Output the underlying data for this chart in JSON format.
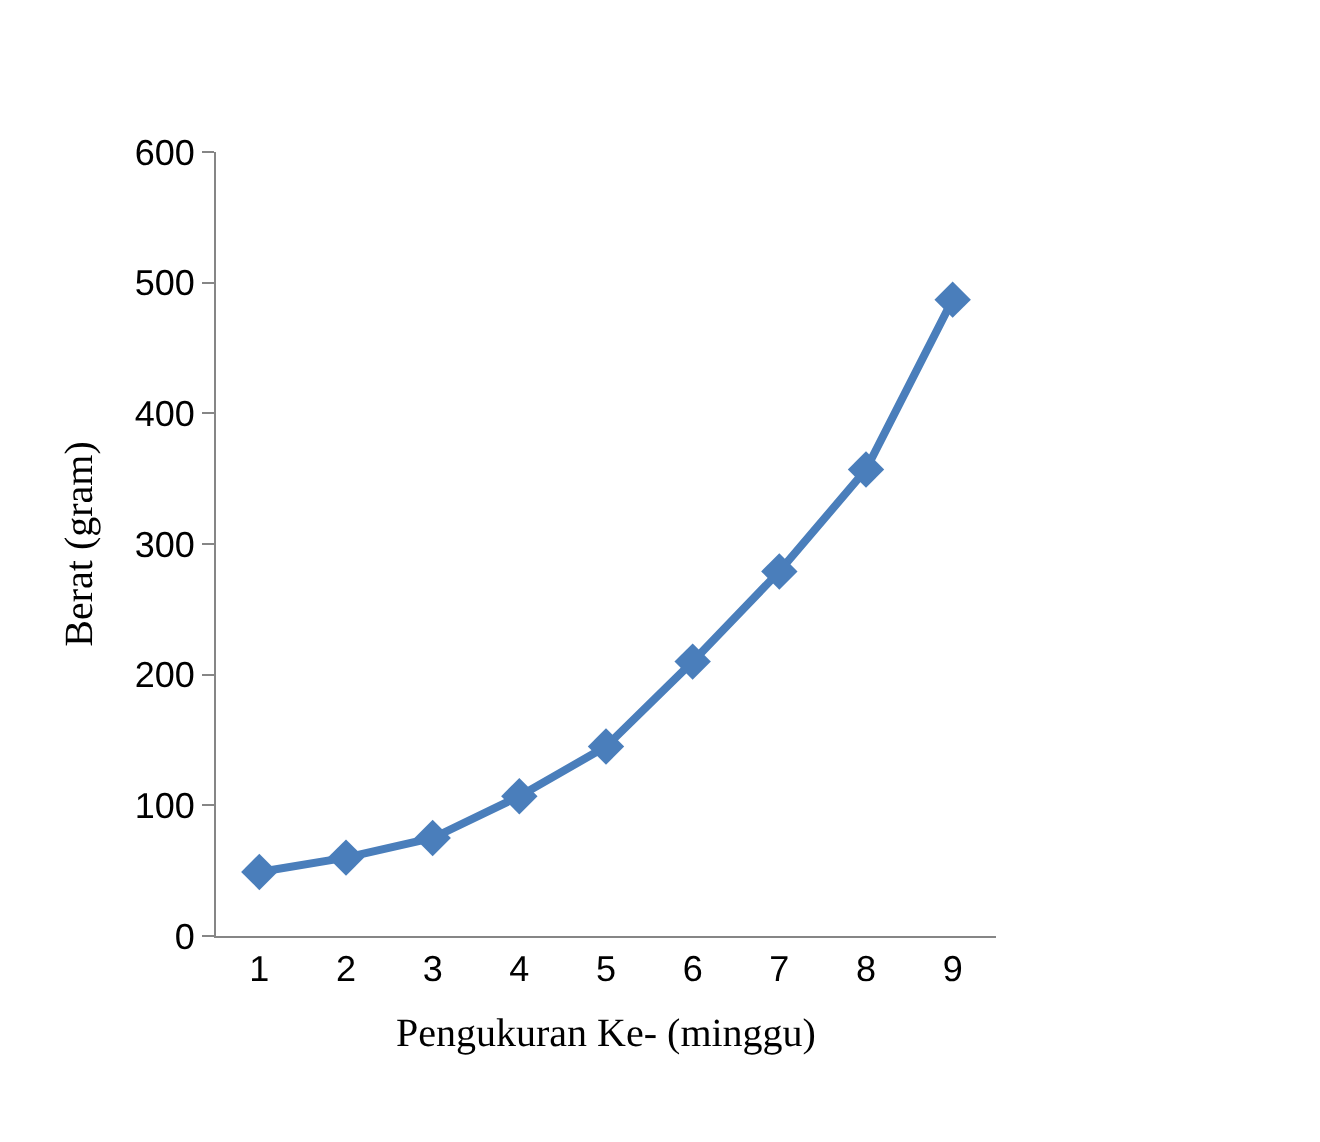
{
  "chart_data": {
    "type": "line",
    "xlabel": "Pengukuran Ke- (minggu)",
    "ylabel": "Berat (gram)",
    "categories": [
      "1",
      "2",
      "3",
      "4",
      "5",
      "6",
      "7",
      "8",
      "9"
    ],
    "series": [
      {
        "color": "#4a7ebb",
        "values": [
          49,
          60,
          75,
          107,
          145,
          210,
          279,
          357,
          487
        ]
      }
    ],
    "ylim": [
      0,
      600
    ],
    "yticks": [
      0,
      100,
      200,
      300,
      400,
      500,
      600
    ],
    "grid": false,
    "marker": "diamond",
    "line_style": "solid"
  }
}
